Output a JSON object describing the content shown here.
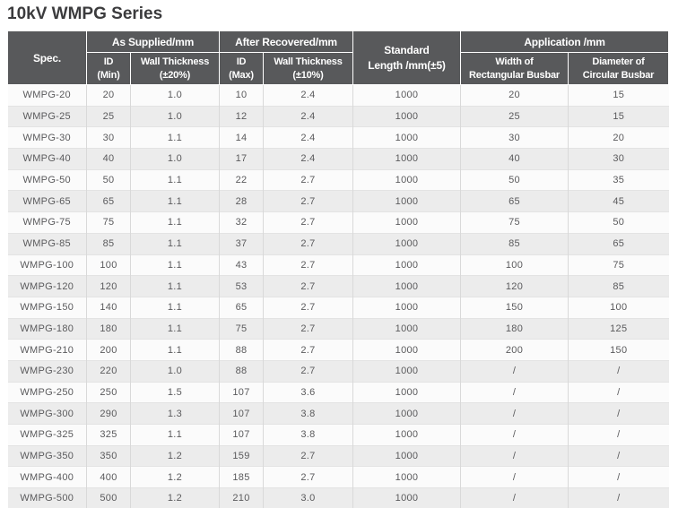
{
  "page": {
    "title": "10kV WMPG Series"
  },
  "colors": {
    "header_bg": "#58595b",
    "header_text": "#ffffff",
    "row_odd": "#fbfbfb",
    "row_even": "#ececec",
    "cell_border": "#d9d9d9",
    "bottom_border": "#7e7e80",
    "body_text": "#5a5a5c",
    "title_text": "#3b3b3d"
  },
  "table": {
    "header_groups": {
      "spec": "Spec.",
      "as_supplied": "As Supplied/mm",
      "after_recovered": "After Recovered/mm",
      "standard_length": "Standard\nLength /mm(±5)",
      "application": "Application /mm"
    },
    "sub_headers": {
      "id_min": "ID\n(Min)",
      "wall_20": "Wall Thickness\n(±20%)",
      "id_max": "ID\n(Max)",
      "wall_10": "Wall Thickness\n(±10%)",
      "width_rect": "Width of\nRectangular Busbar",
      "diam_circ": "Diameter of\nCircular Busbar"
    },
    "rows": [
      [
        "WMPG-20",
        "20",
        "1.0",
        "10",
        "2.4",
        "1000",
        "20",
        "15"
      ],
      [
        "WMPG-25",
        "25",
        "1.0",
        "12",
        "2.4",
        "1000",
        "25",
        "15"
      ],
      [
        "WMPG-30",
        "30",
        "1.1",
        "14",
        "2.4",
        "1000",
        "30",
        "20"
      ],
      [
        "WMPG-40",
        "40",
        "1.0",
        "17",
        "2.4",
        "1000",
        "40",
        "30"
      ],
      [
        "WMPG-50",
        "50",
        "1.1",
        "22",
        "2.7",
        "1000",
        "50",
        "35"
      ],
      [
        "WMPG-65",
        "65",
        "1.1",
        "28",
        "2.7",
        "1000",
        "65",
        "45"
      ],
      [
        "WMPG-75",
        "75",
        "1.1",
        "32",
        "2.7",
        "1000",
        "75",
        "50"
      ],
      [
        "WMPG-85",
        "85",
        "1.1",
        "37",
        "2.7",
        "1000",
        "85",
        "65"
      ],
      [
        "WMPG-100",
        "100",
        "1.1",
        "43",
        "2.7",
        "1000",
        "100",
        "75"
      ],
      [
        "WMPG-120",
        "120",
        "1.1",
        "53",
        "2.7",
        "1000",
        "120",
        "85"
      ],
      [
        "WMPG-150",
        "140",
        "1.1",
        "65",
        "2.7",
        "1000",
        "150",
        "100"
      ],
      [
        "WMPG-180",
        "180",
        "1.1",
        "75",
        "2.7",
        "1000",
        "180",
        "125"
      ],
      [
        "WMPG-210",
        "200",
        "1.1",
        "88",
        "2.7",
        "1000",
        "200",
        "150"
      ],
      [
        "WMPG-230",
        "220",
        "1.0",
        "88",
        "2.7",
        "1000",
        "/",
        "/"
      ],
      [
        "WMPG-250",
        "250",
        "1.5",
        "107",
        "3.6",
        "1000",
        "/",
        "/"
      ],
      [
        "WMPG-300",
        "290",
        "1.3",
        "107",
        "3.8",
        "1000",
        "/",
        "/"
      ],
      [
        "WMPG-325",
        "325",
        "1.1",
        "107",
        "3.8",
        "1000",
        "/",
        "/"
      ],
      [
        "WMPG-350",
        "350",
        "1.2",
        "159",
        "2.7",
        "1000",
        "/",
        "/"
      ],
      [
        "WMPG-400",
        "400",
        "1.2",
        "185",
        "2.7",
        "1000",
        "/",
        "/"
      ],
      [
        "WMPG-500",
        "500",
        "1.2",
        "210",
        "3.0",
        "1000",
        "/",
        "/"
      ]
    ]
  }
}
